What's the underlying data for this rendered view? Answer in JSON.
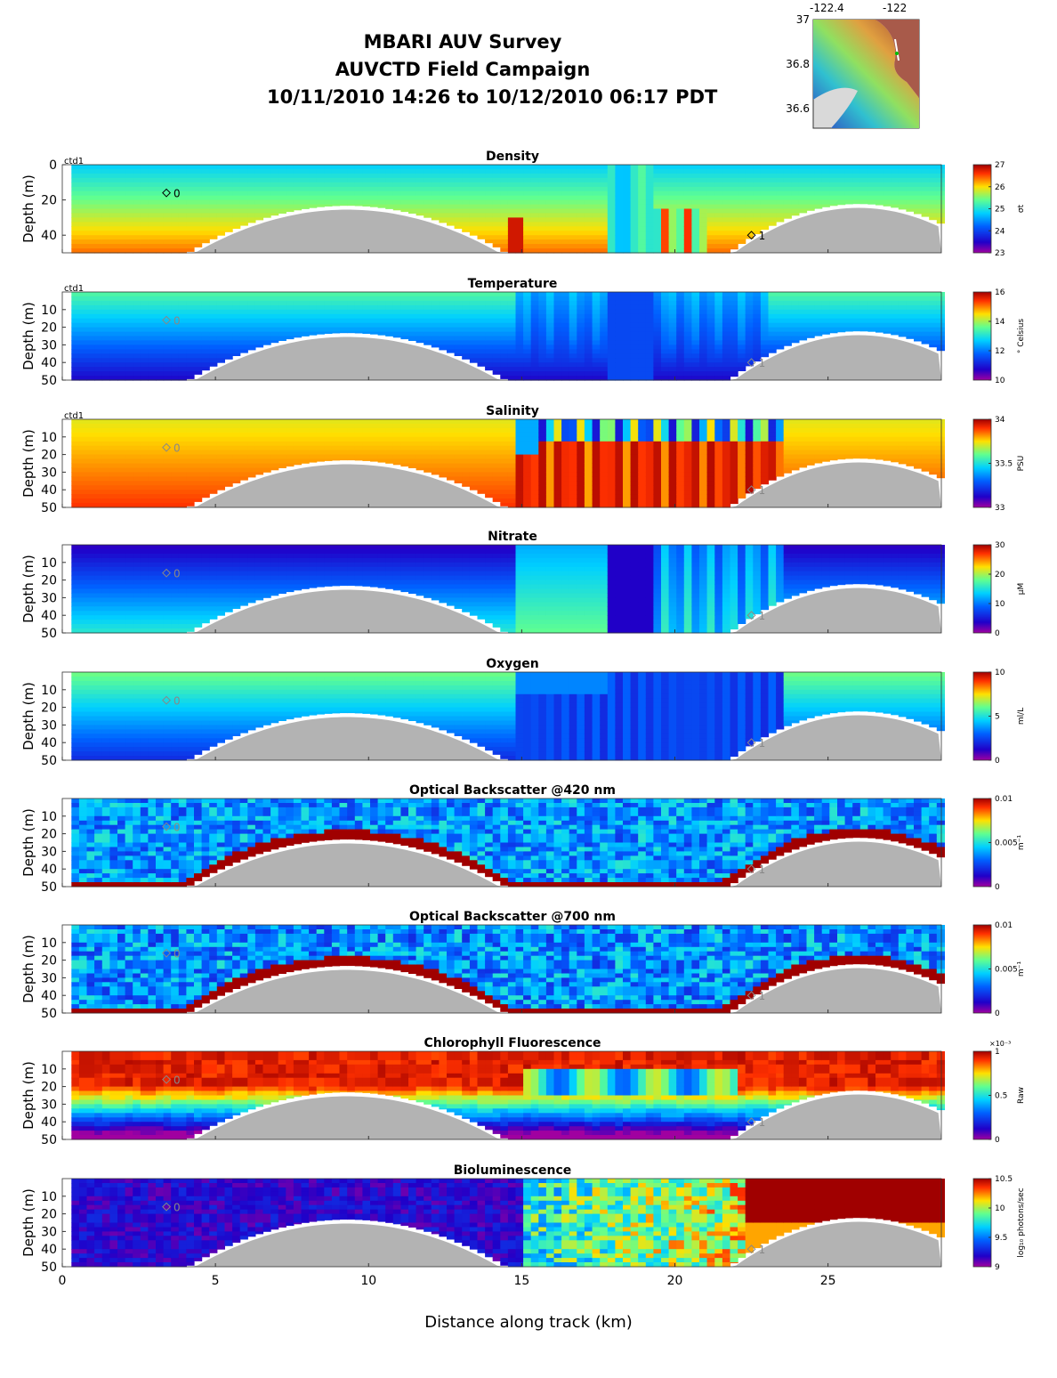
{
  "header": {
    "title_line1": "MBARI AUV Survey",
    "title_line2": "AUVCTD Field Campaign",
    "title_line3": "10/11/2010 14:26  to 10/12/2010 06:17 PDT"
  },
  "inset_map": {
    "lon_ticks": [
      "-122.4",
      "-122"
    ],
    "lat_ticks": [
      "37",
      "36.8",
      "36.6"
    ]
  },
  "chart_data": [
    {
      "type": "heatmap",
      "title": "Density",
      "ylabel": "Depth (m)",
      "xlabel": "Distance along track (km)",
      "xlim": [
        0,
        28.7
      ],
      "ylim": [
        50,
        0
      ],
      "yticks": [
        "0",
        "20",
        "40"
      ],
      "cbar_label": "σt",
      "cbar_ticks": [
        "27",
        "26",
        "25",
        "24",
        "23"
      ],
      "tag": "ctd1",
      "waypoints": [
        {
          "x": 3.4,
          "y": 16,
          "label": "0"
        },
        {
          "x": 22.5,
          "y": 40,
          "label": "1"
        }
      ]
    },
    {
      "type": "heatmap",
      "title": "Temperature",
      "ylabel": "Depth (m)",
      "xlim": [
        0,
        28.7
      ],
      "ylim": [
        50,
        0
      ],
      "yticks": [
        "10",
        "20",
        "30",
        "40",
        "50"
      ],
      "cbar_label": "° Celsius",
      "cbar_ticks": [
        "16",
        "14",
        "12",
        "10"
      ],
      "tag": "ctd1",
      "waypoints": [
        {
          "x": 3.4,
          "y": 16,
          "label": "0"
        },
        {
          "x": 22.5,
          "y": 40,
          "label": "1"
        }
      ]
    },
    {
      "type": "heatmap",
      "title": "Salinity",
      "ylabel": "Depth (m)",
      "xlim": [
        0,
        28.7
      ],
      "ylim": [
        50,
        0
      ],
      "yticks": [
        "10",
        "20",
        "30",
        "40",
        "50"
      ],
      "cbar_label": "PSU",
      "cbar_ticks": [
        "34",
        "33.5",
        "33"
      ],
      "tag": "ctd1",
      "waypoints": [
        {
          "x": 3.4,
          "y": 16,
          "label": "0"
        },
        {
          "x": 22.5,
          "y": 40,
          "label": "1"
        }
      ]
    },
    {
      "type": "heatmap",
      "title": "Nitrate",
      "ylabel": "Depth (m)",
      "xlim": [
        0,
        28.7
      ],
      "ylim": [
        50,
        0
      ],
      "yticks": [
        "10",
        "20",
        "30",
        "40",
        "50"
      ],
      "cbar_label": "μM",
      "cbar_ticks": [
        "30",
        "20",
        "10",
        "0"
      ],
      "tag": "",
      "waypoints": [
        {
          "x": 3.4,
          "y": 16,
          "label": "0"
        },
        {
          "x": 22.5,
          "y": 40,
          "label": "1"
        }
      ]
    },
    {
      "type": "heatmap",
      "title": "Oxygen",
      "ylabel": "Depth (m)",
      "xlim": [
        0,
        28.7
      ],
      "ylim": [
        50,
        0
      ],
      "yticks": [
        "10",
        "20",
        "30",
        "40",
        "50"
      ],
      "cbar_label": "ml/L",
      "cbar_ticks": [
        "10",
        "5",
        "0"
      ],
      "tag": "",
      "waypoints": [
        {
          "x": 3.4,
          "y": 16,
          "label": "0"
        },
        {
          "x": 22.5,
          "y": 40,
          "label": "1"
        }
      ]
    },
    {
      "type": "heatmap",
      "title": "Optical Backscatter @420 nm",
      "ylabel": "Depth (m)",
      "xlim": [
        0,
        28.7
      ],
      "ylim": [
        50,
        0
      ],
      "yticks": [
        "10",
        "20",
        "30",
        "40",
        "50"
      ],
      "cbar_label": "m⁻¹",
      "cbar_ticks": [
        "0.01",
        "0.005",
        "0"
      ],
      "tag": "",
      "waypoints": [
        {
          "x": 3.4,
          "y": 16,
          "label": "0"
        },
        {
          "x": 22.5,
          "y": 40,
          "label": "1"
        }
      ]
    },
    {
      "type": "heatmap",
      "title": "Optical Backscatter @700 nm",
      "ylabel": "Depth (m)",
      "xlim": [
        0,
        28.7
      ],
      "ylim": [
        50,
        0
      ],
      "yticks": [
        "10",
        "20",
        "30",
        "40",
        "50"
      ],
      "cbar_label": "m⁻¹",
      "cbar_ticks": [
        "0.01",
        "0.005",
        "0"
      ],
      "tag": "",
      "waypoints": [
        {
          "x": 3.4,
          "y": 16,
          "label": "0"
        },
        {
          "x": 22.5,
          "y": 40,
          "label": "1"
        }
      ]
    },
    {
      "type": "heatmap",
      "title": "Chlorophyll Fluorescence",
      "ylabel": "Depth (m)",
      "xlim": [
        0,
        28.7
      ],
      "ylim": [
        50,
        0
      ],
      "yticks": [
        "10",
        "20",
        "30",
        "40",
        "50"
      ],
      "cbar_label": "Raw",
      "cbar_ticks": [
        "1",
        "0.5",
        "0"
      ],
      "cbar_exponent": "×10⁻³",
      "tag": "",
      "waypoints": [
        {
          "x": 3.4,
          "y": 16,
          "label": "0"
        },
        {
          "x": 22.5,
          "y": 40,
          "label": "1"
        }
      ]
    },
    {
      "type": "heatmap",
      "title": "Bioluminescence",
      "ylabel": "Depth (m)",
      "xlim": [
        0,
        28.7
      ],
      "ylim": [
        50,
        0
      ],
      "yticks": [
        "10",
        "20",
        "30",
        "40",
        "50"
      ],
      "xticks": [
        "0",
        "5",
        "10",
        "15",
        "20",
        "25"
      ],
      "cbar_label": "log₁₀ photons/sec",
      "cbar_ticks": [
        "10.5",
        "10",
        "9.5",
        "9"
      ],
      "tag": "",
      "waypoints": [
        {
          "x": 3.4,
          "y": 16,
          "label": "0"
        },
        {
          "x": 22.5,
          "y": 40,
          "label": "1"
        }
      ]
    }
  ],
  "x_axis": {
    "label": "Distance along track (km)",
    "ticks": [
      0,
      5,
      10,
      15,
      20,
      25
    ]
  }
}
